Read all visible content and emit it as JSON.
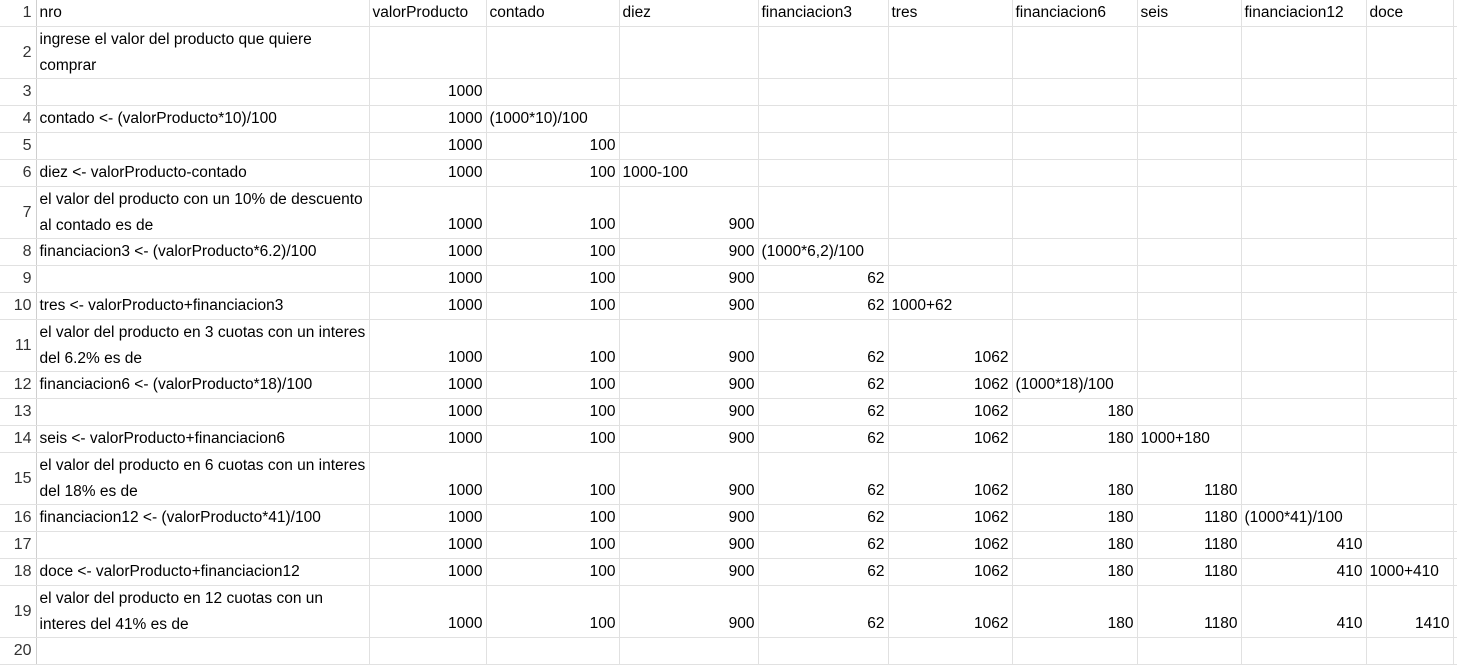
{
  "sheet": {
    "rows": [
      {
        "n": "1",
        "h": 1,
        "c": [
          {
            "v": "nro"
          },
          {
            "v": "valorProducto"
          },
          {
            "v": "contado"
          },
          {
            "v": "diez"
          },
          {
            "v": "financiacion3"
          },
          {
            "v": "tres"
          },
          {
            "v": "financiacion6"
          },
          {
            "v": "seis"
          },
          {
            "v": "financiacion12"
          },
          {
            "v": "doce"
          },
          {
            "v": ""
          }
        ]
      },
      {
        "n": "2",
        "h": 2,
        "c": [
          {
            "v": "ingrese el valor del producto que quiere comprar",
            "wrap": true
          },
          {
            "v": ""
          },
          {
            "v": ""
          },
          {
            "v": ""
          },
          {
            "v": ""
          },
          {
            "v": ""
          },
          {
            "v": ""
          },
          {
            "v": ""
          },
          {
            "v": ""
          },
          {
            "v": ""
          },
          {
            "v": ""
          }
        ]
      },
      {
        "n": "3",
        "h": 1,
        "c": [
          {
            "v": ""
          },
          {
            "v": "1000",
            "num": true
          },
          {
            "v": ""
          },
          {
            "v": ""
          },
          {
            "v": ""
          },
          {
            "v": ""
          },
          {
            "v": ""
          },
          {
            "v": ""
          },
          {
            "v": ""
          },
          {
            "v": ""
          },
          {
            "v": ""
          }
        ]
      },
      {
        "n": "4",
        "h": 1,
        "c": [
          {
            "v": "contado <- (valorProducto*10)/100"
          },
          {
            "v": "1000",
            "num": true
          },
          {
            "v": "(1000*10)/100"
          },
          {
            "v": ""
          },
          {
            "v": ""
          },
          {
            "v": ""
          },
          {
            "v": ""
          },
          {
            "v": ""
          },
          {
            "v": ""
          },
          {
            "v": ""
          },
          {
            "v": ""
          }
        ]
      },
      {
        "n": "5",
        "h": 1,
        "c": [
          {
            "v": ""
          },
          {
            "v": "1000",
            "num": true
          },
          {
            "v": "100",
            "num": true
          },
          {
            "v": ""
          },
          {
            "v": ""
          },
          {
            "v": ""
          },
          {
            "v": ""
          },
          {
            "v": ""
          },
          {
            "v": ""
          },
          {
            "v": ""
          },
          {
            "v": ""
          }
        ]
      },
      {
        "n": "6",
        "h": 1,
        "c": [
          {
            "v": "diez <- valorProducto-contado"
          },
          {
            "v": "1000",
            "num": true
          },
          {
            "v": "100",
            "num": true
          },
          {
            "v": "1000-100"
          },
          {
            "v": ""
          },
          {
            "v": ""
          },
          {
            "v": ""
          },
          {
            "v": ""
          },
          {
            "v": ""
          },
          {
            "v": ""
          },
          {
            "v": ""
          }
        ]
      },
      {
        "n": "7",
        "h": 2,
        "c": [
          {
            "v": "el valor del producto con un 10% de descuento al contado es de",
            "wrap": true
          },
          {
            "v": "1000",
            "num": true
          },
          {
            "v": "100",
            "num": true
          },
          {
            "v": "900",
            "num": true
          },
          {
            "v": ""
          },
          {
            "v": ""
          },
          {
            "v": ""
          },
          {
            "v": ""
          },
          {
            "v": ""
          },
          {
            "v": ""
          },
          {
            "v": ""
          }
        ]
      },
      {
        "n": "8",
        "h": 1,
        "c": [
          {
            "v": "financiacion3 <- (valorProducto*6.2)/100"
          },
          {
            "v": "1000",
            "num": true
          },
          {
            "v": "100",
            "num": true
          },
          {
            "v": "900",
            "num": true
          },
          {
            "v": "(1000*6,2)/100"
          },
          {
            "v": ""
          },
          {
            "v": ""
          },
          {
            "v": ""
          },
          {
            "v": ""
          },
          {
            "v": ""
          },
          {
            "v": ""
          }
        ]
      },
      {
        "n": "9",
        "h": 1,
        "c": [
          {
            "v": ""
          },
          {
            "v": "1000",
            "num": true
          },
          {
            "v": "100",
            "num": true
          },
          {
            "v": "900",
            "num": true
          },
          {
            "v": "62",
            "num": true
          },
          {
            "v": ""
          },
          {
            "v": ""
          },
          {
            "v": ""
          },
          {
            "v": ""
          },
          {
            "v": ""
          },
          {
            "v": ""
          }
        ]
      },
      {
        "n": "10",
        "h": 1,
        "c": [
          {
            "v": "tres <- valorProducto+financiacion3"
          },
          {
            "v": "1000",
            "num": true
          },
          {
            "v": "100",
            "num": true
          },
          {
            "v": "900",
            "num": true
          },
          {
            "v": "62",
            "num": true
          },
          {
            "v": "1000+62"
          },
          {
            "v": ""
          },
          {
            "v": ""
          },
          {
            "v": ""
          },
          {
            "v": ""
          },
          {
            "v": ""
          }
        ]
      },
      {
        "n": "11",
        "h": 2,
        "c": [
          {
            "v": "el valor del producto en 3 cuotas con un interes del 6.2% es de",
            "wrap": true
          },
          {
            "v": "1000",
            "num": true
          },
          {
            "v": "100",
            "num": true
          },
          {
            "v": "900",
            "num": true
          },
          {
            "v": "62",
            "num": true
          },
          {
            "v": "1062",
            "num": true
          },
          {
            "v": ""
          },
          {
            "v": ""
          },
          {
            "v": ""
          },
          {
            "v": ""
          },
          {
            "v": ""
          }
        ]
      },
      {
        "n": "12",
        "h": 1,
        "c": [
          {
            "v": "financiacion6 <- (valorProducto*18)/100"
          },
          {
            "v": "1000",
            "num": true
          },
          {
            "v": "100",
            "num": true
          },
          {
            "v": "900",
            "num": true
          },
          {
            "v": "62",
            "num": true
          },
          {
            "v": "1062",
            "num": true
          },
          {
            "v": "(1000*18)/100"
          },
          {
            "v": ""
          },
          {
            "v": ""
          },
          {
            "v": ""
          },
          {
            "v": ""
          }
        ]
      },
      {
        "n": "13",
        "h": 1,
        "c": [
          {
            "v": ""
          },
          {
            "v": "1000",
            "num": true
          },
          {
            "v": "100",
            "num": true
          },
          {
            "v": "900",
            "num": true
          },
          {
            "v": "62",
            "num": true
          },
          {
            "v": "1062",
            "num": true
          },
          {
            "v": "180",
            "num": true
          },
          {
            "v": ""
          },
          {
            "v": ""
          },
          {
            "v": ""
          },
          {
            "v": ""
          }
        ]
      },
      {
        "n": "14",
        "h": 1,
        "c": [
          {
            "v": "seis <- valorProducto+financiacion6"
          },
          {
            "v": "1000",
            "num": true
          },
          {
            "v": "100",
            "num": true
          },
          {
            "v": "900",
            "num": true
          },
          {
            "v": "62",
            "num": true
          },
          {
            "v": "1062",
            "num": true
          },
          {
            "v": "180",
            "num": true
          },
          {
            "v": "1000+180"
          },
          {
            "v": ""
          },
          {
            "v": ""
          },
          {
            "v": ""
          }
        ]
      },
      {
        "n": "15",
        "h": 2,
        "c": [
          {
            "v": "el valor del producto en 6 cuotas con un interes del 18% es de",
            "wrap": true
          },
          {
            "v": "1000",
            "num": true
          },
          {
            "v": "100",
            "num": true
          },
          {
            "v": "900",
            "num": true
          },
          {
            "v": "62",
            "num": true
          },
          {
            "v": "1062",
            "num": true
          },
          {
            "v": "180",
            "num": true
          },
          {
            "v": "1180",
            "num": true
          },
          {
            "v": ""
          },
          {
            "v": ""
          },
          {
            "v": ""
          }
        ]
      },
      {
        "n": "16",
        "h": 1,
        "c": [
          {
            "v": "financiacion12 <- (valorProducto*41)/100"
          },
          {
            "v": "1000",
            "num": true
          },
          {
            "v": "100",
            "num": true
          },
          {
            "v": "900",
            "num": true
          },
          {
            "v": "62",
            "num": true
          },
          {
            "v": "1062",
            "num": true
          },
          {
            "v": "180",
            "num": true
          },
          {
            "v": "1180",
            "num": true
          },
          {
            "v": "(1000*41)/100"
          },
          {
            "v": ""
          },
          {
            "v": ""
          }
        ]
      },
      {
        "n": "17",
        "h": 1,
        "c": [
          {
            "v": ""
          },
          {
            "v": "1000",
            "num": true
          },
          {
            "v": "100",
            "num": true
          },
          {
            "v": "900",
            "num": true
          },
          {
            "v": "62",
            "num": true
          },
          {
            "v": "1062",
            "num": true
          },
          {
            "v": "180",
            "num": true
          },
          {
            "v": "1180",
            "num": true
          },
          {
            "v": "410",
            "num": true
          },
          {
            "v": ""
          },
          {
            "v": ""
          }
        ]
      },
      {
        "n": "18",
        "h": 1,
        "c": [
          {
            "v": "doce <- valorProducto+financiacion12"
          },
          {
            "v": "1000",
            "num": true
          },
          {
            "v": "100",
            "num": true
          },
          {
            "v": "900",
            "num": true
          },
          {
            "v": "62",
            "num": true
          },
          {
            "v": "1062",
            "num": true
          },
          {
            "v": "180",
            "num": true
          },
          {
            "v": "1180",
            "num": true
          },
          {
            "v": "410",
            "num": true
          },
          {
            "v": "1000+410"
          },
          {
            "v": ""
          }
        ]
      },
      {
        "n": "19",
        "h": 2,
        "c": [
          {
            "v": "el valor del producto en 12 cuotas con un interes del 41% es de",
            "wrap": true
          },
          {
            "v": "1000",
            "num": true
          },
          {
            "v": "100",
            "num": true
          },
          {
            "v": "900",
            "num": true
          },
          {
            "v": "62",
            "num": true
          },
          {
            "v": "1062",
            "num": true
          },
          {
            "v": "180",
            "num": true
          },
          {
            "v": "1180",
            "num": true
          },
          {
            "v": "410",
            "num": true
          },
          {
            "v": "1410",
            "num": true
          },
          {
            "v": ""
          }
        ]
      },
      {
        "n": "20",
        "h": 1,
        "c": [
          {
            "v": ""
          },
          {
            "v": ""
          },
          {
            "v": ""
          },
          {
            "v": ""
          },
          {
            "v": ""
          },
          {
            "v": ""
          },
          {
            "v": ""
          },
          {
            "v": ""
          },
          {
            "v": ""
          },
          {
            "v": ""
          },
          {
            "v": ""
          }
        ]
      }
    ]
  }
}
